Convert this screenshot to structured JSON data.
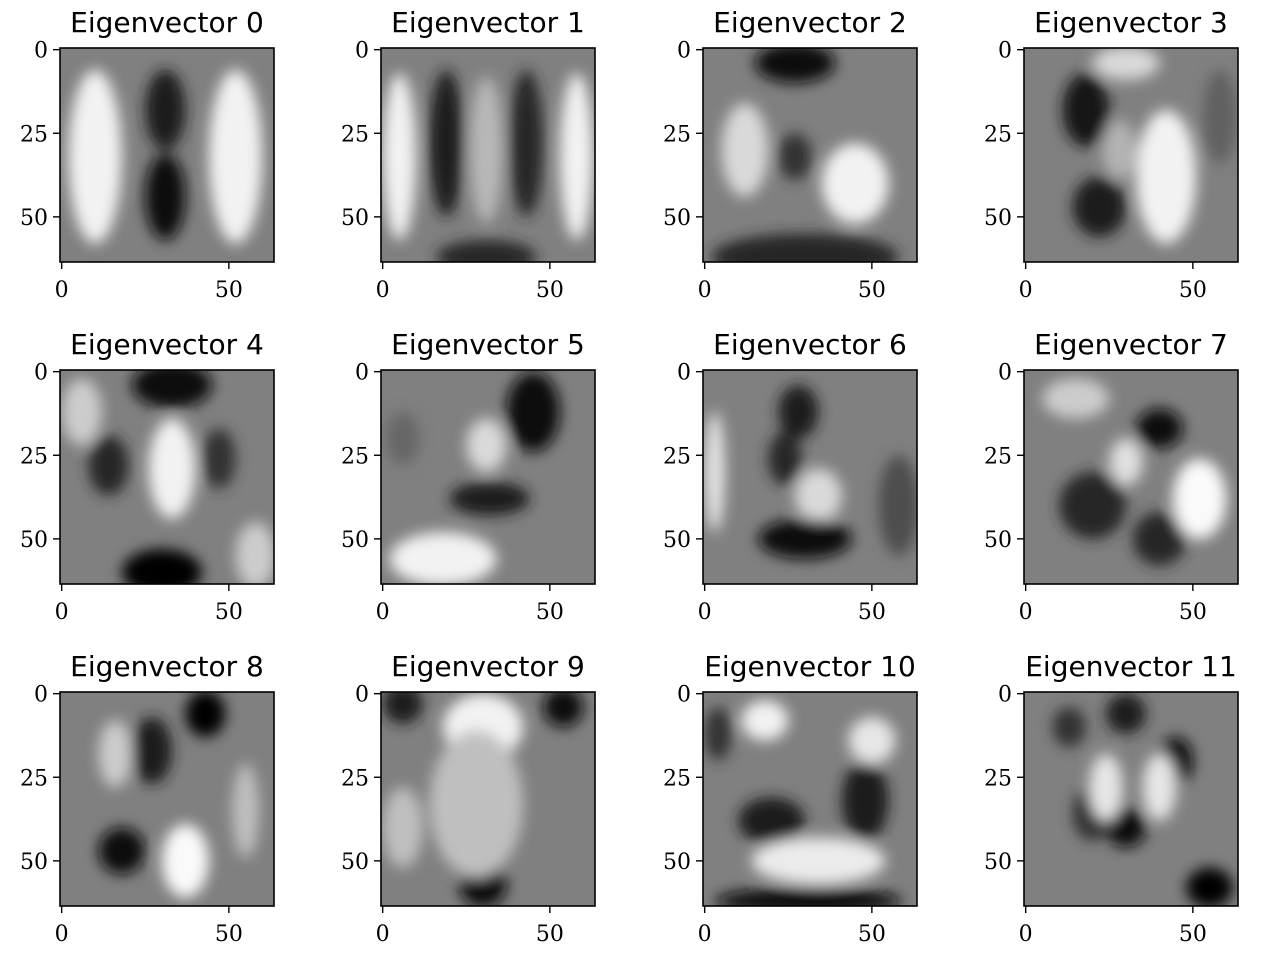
{
  "chart_data": {
    "type": "heatmap",
    "colormap": "gray",
    "rows": 3,
    "columns": 4,
    "image_size": [
      64,
      64
    ],
    "xlim": [
      -0.5,
      63.5
    ],
    "ylim": [
      63.5,
      -0.5
    ],
    "x_ticks": [
      0,
      50
    ],
    "y_ticks": [
      0,
      25,
      50
    ],
    "tick_labels": {
      "x": [
        "0",
        "50"
      ],
      "y": [
        "0",
        "25",
        "50"
      ]
    },
    "grid": false,
    "panels": [
      {
        "title": "Eigenvector 0",
        "blobs": [
          {
            "cx": 10,
            "cy": 32,
            "rx": 8,
            "ry": 26,
            "v": 0.95
          },
          {
            "cx": 52,
            "cy": 32,
            "rx": 8,
            "ry": 26,
            "v": 0.95
          },
          {
            "cx": 31,
            "cy": 18,
            "rx": 6,
            "ry": 12,
            "v": 0.1
          },
          {
            "cx": 31,
            "cy": 44,
            "rx": 6,
            "ry": 13,
            "v": 0.05
          }
        ]
      },
      {
        "title": "Eigenvector 1",
        "blobs": [
          {
            "cx": 5,
            "cy": 32,
            "rx": 5,
            "ry": 25,
            "v": 0.95
          },
          {
            "cx": 58,
            "cy": 32,
            "rx": 5,
            "ry": 25,
            "v": 0.95
          },
          {
            "cx": 19,
            "cy": 28,
            "rx": 5,
            "ry": 22,
            "v": 0.1
          },
          {
            "cx": 43,
            "cy": 28,
            "rx": 5,
            "ry": 22,
            "v": 0.15
          },
          {
            "cx": 31,
            "cy": 30,
            "rx": 5,
            "ry": 22,
            "v": 0.72
          },
          {
            "cx": 31,
            "cy": 62,
            "rx": 15,
            "ry": 5,
            "v": 0.15
          }
        ]
      },
      {
        "title": "Eigenvector 2",
        "blobs": [
          {
            "cx": 27,
            "cy": 4,
            "rx": 12,
            "ry": 6,
            "v": 0.05
          },
          {
            "cx": 30,
            "cy": 62,
            "rx": 28,
            "ry": 7,
            "v": 0.15
          },
          {
            "cx": 12,
            "cy": 30,
            "rx": 7,
            "ry": 14,
            "v": 0.85
          },
          {
            "cx": 45,
            "cy": 40,
            "rx": 10,
            "ry": 12,
            "v": 0.95
          },
          {
            "cx": 27,
            "cy": 32,
            "rx": 5,
            "ry": 7,
            "v": 0.2
          }
        ]
      },
      {
        "title": "Eigenvector 3",
        "blobs": [
          {
            "cx": 18,
            "cy": 18,
            "rx": 7,
            "ry": 11,
            "v": 0.08
          },
          {
            "cx": 22,
            "cy": 47,
            "rx": 8,
            "ry": 9,
            "v": 0.12
          },
          {
            "cx": 28,
            "cy": 30,
            "rx": 5,
            "ry": 9,
            "v": 0.7
          },
          {
            "cx": 42,
            "cy": 38,
            "rx": 9,
            "ry": 20,
            "v": 0.95
          },
          {
            "cx": 58,
            "cy": 20,
            "rx": 5,
            "ry": 14,
            "v": 0.38
          },
          {
            "cx": 30,
            "cy": 4,
            "rx": 10,
            "ry": 5,
            "v": 0.85
          }
        ]
      },
      {
        "title": "Eigenvector 4",
        "blobs": [
          {
            "cx": 33,
            "cy": 4,
            "rx": 12,
            "ry": 7,
            "v": 0.05
          },
          {
            "cx": 30,
            "cy": 60,
            "rx": 12,
            "ry": 7,
            "v": 0.0
          },
          {
            "cx": 14,
            "cy": 28,
            "rx": 6,
            "ry": 9,
            "v": 0.15
          },
          {
            "cx": 47,
            "cy": 26,
            "rx": 5,
            "ry": 9,
            "v": 0.2
          },
          {
            "cx": 33,
            "cy": 29,
            "rx": 7,
            "ry": 15,
            "v": 0.95
          },
          {
            "cx": 6,
            "cy": 12,
            "rx": 6,
            "ry": 10,
            "v": 0.8
          },
          {
            "cx": 58,
            "cy": 55,
            "rx": 6,
            "ry": 10,
            "v": 0.8
          }
        ]
      },
      {
        "title": "Eigenvector 5",
        "blobs": [
          {
            "cx": 45,
            "cy": 12,
            "rx": 8,
            "ry": 12,
            "v": 0.05
          },
          {
            "cx": 32,
            "cy": 38,
            "rx": 12,
            "ry": 5,
            "v": 0.1
          },
          {
            "cx": 31,
            "cy": 22,
            "rx": 6,
            "ry": 8,
            "v": 0.85
          },
          {
            "cx": 18,
            "cy": 56,
            "rx": 16,
            "ry": 8,
            "v": 0.95
          },
          {
            "cx": 6,
            "cy": 20,
            "rx": 5,
            "ry": 8,
            "v": 0.4
          }
        ]
      },
      {
        "title": "Eigenvector 6",
        "blobs": [
          {
            "cx": 28,
            "cy": 12,
            "rx": 6,
            "ry": 8,
            "v": 0.1
          },
          {
            "cx": 24,
            "cy": 26,
            "rx": 5,
            "ry": 8,
            "v": 0.15
          },
          {
            "cx": 34,
            "cy": 37,
            "rx": 7,
            "ry": 8,
            "v": 0.85
          },
          {
            "cx": 30,
            "cy": 50,
            "rx": 14,
            "ry": 6,
            "v": 0.05
          },
          {
            "cx": 3,
            "cy": 30,
            "rx": 3,
            "ry": 18,
            "v": 0.9
          },
          {
            "cx": 58,
            "cy": 40,
            "rx": 6,
            "ry": 15,
            "v": 0.3
          }
        ]
      },
      {
        "title": "Eigenvector 7",
        "blobs": [
          {
            "cx": 40,
            "cy": 17,
            "rx": 7,
            "ry": 6,
            "v": 0.05
          },
          {
            "cx": 20,
            "cy": 40,
            "rx": 10,
            "ry": 10,
            "v": 0.15
          },
          {
            "cx": 40,
            "cy": 50,
            "rx": 8,
            "ry": 8,
            "v": 0.15
          },
          {
            "cx": 52,
            "cy": 38,
            "rx": 8,
            "ry": 12,
            "v": 0.98
          },
          {
            "cx": 30,
            "cy": 27,
            "rx": 5,
            "ry": 7,
            "v": 0.88
          },
          {
            "cx": 15,
            "cy": 8,
            "rx": 10,
            "ry": 6,
            "v": 0.8
          }
        ]
      },
      {
        "title": "Eigenvector 8",
        "blobs": [
          {
            "cx": 43,
            "cy": 6,
            "rx": 6,
            "ry": 7,
            "v": 0.0
          },
          {
            "cx": 27,
            "cy": 17,
            "rx": 6,
            "ry": 10,
            "v": 0.1
          },
          {
            "cx": 18,
            "cy": 47,
            "rx": 7,
            "ry": 7,
            "v": 0.05
          },
          {
            "cx": 37,
            "cy": 50,
            "rx": 7,
            "ry": 11,
            "v": 0.98
          },
          {
            "cx": 16,
            "cy": 18,
            "rx": 5,
            "ry": 10,
            "v": 0.8
          },
          {
            "cx": 55,
            "cy": 35,
            "rx": 4,
            "ry": 14,
            "v": 0.75
          }
        ]
      },
      {
        "title": "Eigenvector 9",
        "blobs": [
          {
            "cx": 6,
            "cy": 3,
            "rx": 6,
            "ry": 6,
            "v": 0.1
          },
          {
            "cx": 54,
            "cy": 4,
            "rx": 6,
            "ry": 6,
            "v": 0.05
          },
          {
            "cx": 30,
            "cy": 57,
            "rx": 7,
            "ry": 7,
            "v": 0.05
          },
          {
            "cx": 30,
            "cy": 10,
            "rx": 12,
            "ry": 10,
            "v": 0.95
          },
          {
            "cx": 28,
            "cy": 33,
            "rx": 14,
            "ry": 22,
            "v": 0.75
          },
          {
            "cx": 6,
            "cy": 40,
            "rx": 6,
            "ry": 12,
            "v": 0.75
          }
        ]
      },
      {
        "title": "Eigenvector 10",
        "blobs": [
          {
            "cx": 20,
            "cy": 38,
            "rx": 10,
            "ry": 7,
            "v": 0.1
          },
          {
            "cx": 48,
            "cy": 32,
            "rx": 7,
            "ry": 12,
            "v": 0.1
          },
          {
            "cx": 31,
            "cy": 62,
            "rx": 28,
            "ry": 4,
            "v": 0.05
          },
          {
            "cx": 18,
            "cy": 8,
            "rx": 7,
            "ry": 6,
            "v": 0.95
          },
          {
            "cx": 50,
            "cy": 14,
            "rx": 7,
            "ry": 7,
            "v": 0.9
          },
          {
            "cx": 34,
            "cy": 50,
            "rx": 20,
            "ry": 7,
            "v": 0.92
          },
          {
            "cx": 4,
            "cy": 12,
            "rx": 4,
            "ry": 8,
            "v": 0.2
          }
        ]
      },
      {
        "title": "Eigenvector 11",
        "blobs": [
          {
            "cx": 30,
            "cy": 6,
            "rx": 6,
            "ry": 6,
            "v": 0.1
          },
          {
            "cx": 45,
            "cy": 20,
            "rx": 5,
            "ry": 7,
            "v": 0.05
          },
          {
            "cx": 30,
            "cy": 40,
            "rx": 6,
            "ry": 6,
            "v": 0.05
          },
          {
            "cx": 55,
            "cy": 58,
            "rx": 7,
            "ry": 6,
            "v": 0.0
          },
          {
            "cx": 20,
            "cy": 36,
            "rx": 6,
            "ry": 8,
            "v": 0.2
          },
          {
            "cx": 24,
            "cy": 28,
            "rx": 5,
            "ry": 10,
            "v": 0.9
          },
          {
            "cx": 40,
            "cy": 28,
            "rx": 5,
            "ry": 10,
            "v": 0.9
          },
          {
            "cx": 13,
            "cy": 10,
            "rx": 5,
            "ry": 6,
            "v": 0.2
          }
        ]
      }
    ]
  }
}
